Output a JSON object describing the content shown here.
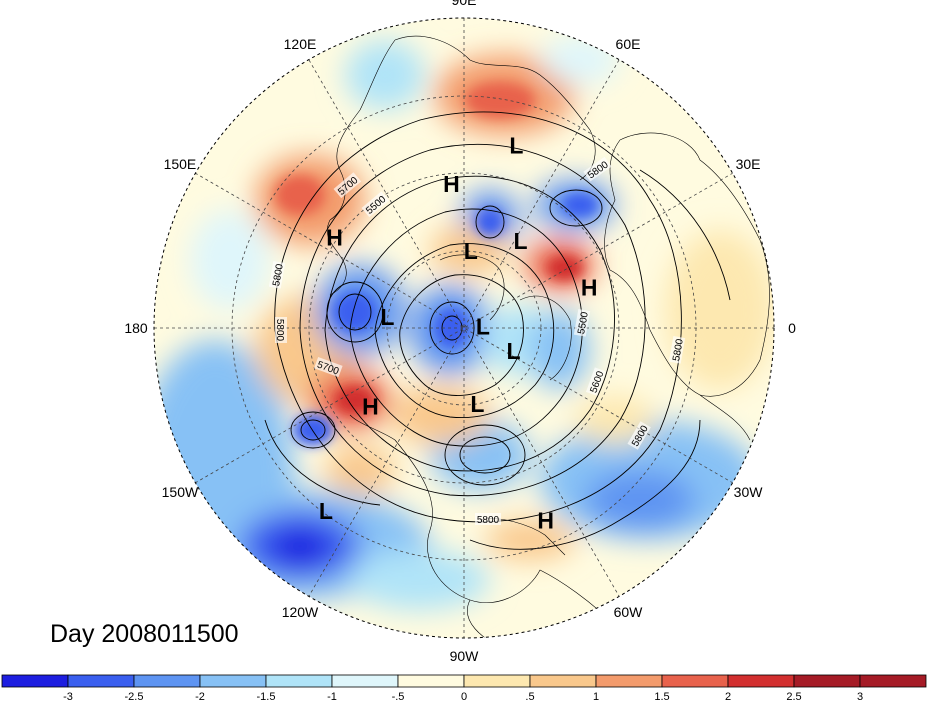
{
  "title": "Day 2008011500",
  "longitude_labels": [
    {
      "text": "90E",
      "lon": 90
    },
    {
      "text": "60E",
      "lon": 60
    },
    {
      "text": "30E",
      "lon": 30
    },
    {
      "text": "0",
      "lon": 0
    },
    {
      "text": "30W",
      "lon": -30
    },
    {
      "text": "60W",
      "lon": -60
    },
    {
      "text": "90W",
      "lon": -90
    },
    {
      "text": "120W",
      "lon": -120
    },
    {
      "text": "150W",
      "lon": -150
    },
    {
      "text": "180",
      "lon": 180
    },
    {
      "text": "150E",
      "lon": 150
    },
    {
      "text": "120E",
      "lon": 120
    }
  ],
  "pressure_centers": [
    {
      "type": "L",
      "lon": 74,
      "lat": 27
    },
    {
      "type": "H",
      "lon": 95,
      "lat": 40
    },
    {
      "type": "H",
      "lon": 145,
      "lat": 36
    },
    {
      "type": "L",
      "lon": 85,
      "lat": 62
    },
    {
      "type": "L",
      "lon": 57,
      "lat": 53
    },
    {
      "type": "H",
      "lon": 18,
      "lat": 44
    },
    {
      "type": "L",
      "lon": 172,
      "lat": 62
    },
    {
      "type": "L",
      "lon": 5,
      "lat": 83
    },
    {
      "type": "L",
      "lon": -25,
      "lat": 70
    },
    {
      "type": "H",
      "lon": -140,
      "lat": 47
    },
    {
      "type": "L",
      "lon": -80,
      "lat": 62
    },
    {
      "type": "H",
      "lon": -67,
      "lat": 22
    },
    {
      "type": "L",
      "lon": -127,
      "lat": 17
    }
  ],
  "contour_labels": [
    "5800",
    "5800",
    "5800",
    "5800",
    "5800",
    "5800",
    "5700",
    "5700",
    "5600",
    "5500",
    "5500"
  ],
  "colorbar": {
    "labels": [
      "-3",
      "-2.5",
      "-2",
      "-1.5",
      "-1",
      "-.5",
      "0",
      ".5",
      "1",
      "1.5",
      "2",
      "2.5",
      "3"
    ],
    "colors": [
      "#1d1ee0",
      "#3a5fef",
      "#5e94f2",
      "#87c1f5",
      "#b0e4f8",
      "#dff6fb",
      "#fffbe0",
      "#fde8b0",
      "#f9c88c",
      "#f39b6c",
      "#e8624c",
      "#d22f2f",
      "#a51b26",
      "#a51b26"
    ]
  }
}
